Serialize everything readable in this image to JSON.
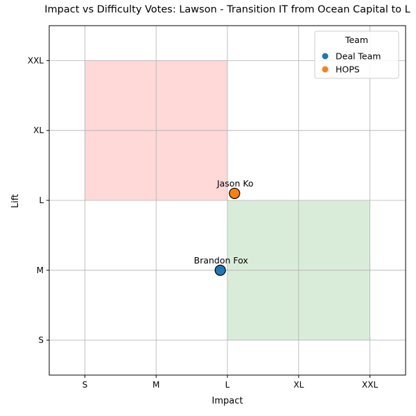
{
  "chart_data": {
    "type": "scatter",
    "title": "Impact vs Difficulty Votes: Lawson - Transition IT from Ocean Capital to L",
    "xlabel": "Impact",
    "ylabel": "Lift",
    "x_categories": [
      "S",
      "M",
      "L",
      "XL",
      "XXL"
    ],
    "y_categories": [
      "S",
      "M",
      "L",
      "XL",
      "XXL"
    ],
    "xlim": [
      -0.5,
      4.5
    ],
    "ylim": [
      -0.5,
      4.5
    ],
    "grid": true,
    "regions": [
      {
        "x": [
          0,
          2
        ],
        "y": [
          2,
          4
        ],
        "color": "#ffd8d8"
      },
      {
        "x": [
          2,
          4
        ],
        "y": [
          0,
          2
        ],
        "color": "#d9ecd9"
      }
    ],
    "legend": {
      "title": "Team",
      "placement": "top-right",
      "entries": [
        {
          "label": "Deal Team",
          "color": "#1f77b4"
        },
        {
          "label": "HOPS",
          "color": "#ff7f0e"
        }
      ]
    },
    "points": [
      {
        "name": "Brandon Fox",
        "team": "Deal Team",
        "x": 1.9,
        "y": 1.0,
        "color": "#1f77b4"
      },
      {
        "name": "Jason Ko",
        "team": "HOPS",
        "x": 2.1,
        "y": 2.1,
        "color": "#ff7f0e"
      }
    ]
  }
}
